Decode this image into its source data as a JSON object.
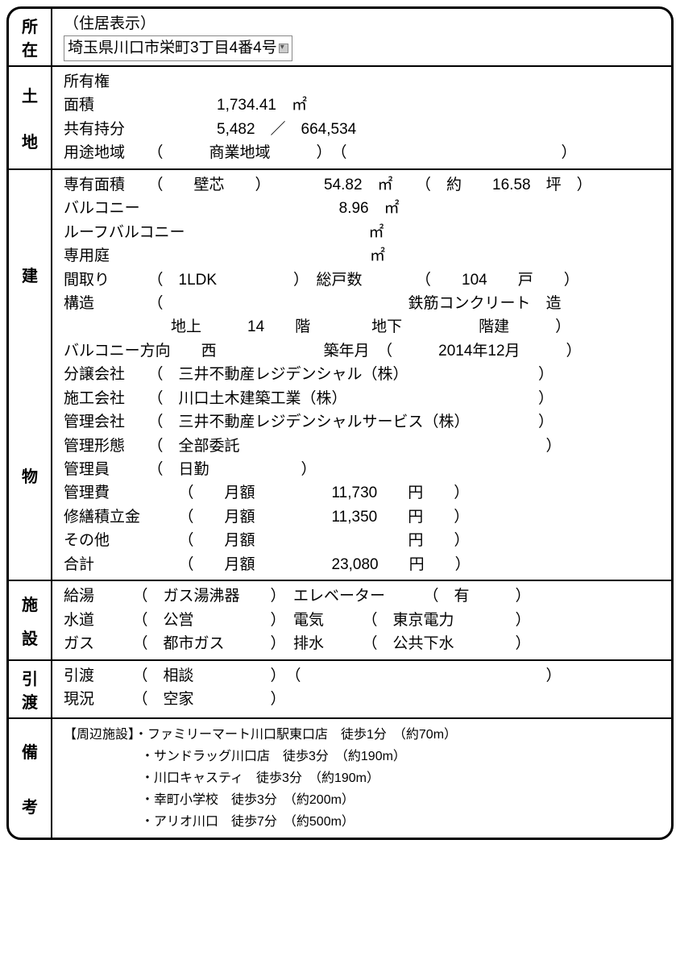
{
  "location": {
    "side1": "所",
    "side2": "在",
    "header": "（住居表示）",
    "address": "埼玉県川口市栄町3丁目4番4号"
  },
  "land": {
    "side1": "土",
    "side2": "地",
    "line1": "所有権",
    "line2": "面積　　　　　　　　1,734.41　㎡",
    "line3": "共有持分　　　　　　5,482　／　664,534",
    "line4": "用途地域　　（　　　商業地域　　　）　（　　　　　　　　　　　　　　）"
  },
  "building": {
    "side1": "建",
    "side2": "物",
    "l01": "専有面積　　（　　壁芯　　）　　　　54.82　㎡　　（　約　　16.58　坪　）",
    "l02": "バルコニー　　　　　　　　　　　　　8.96　㎡",
    "l03": "ルーフバルコニー　　　　　　　　　　　　㎡",
    "l04": "専用庭　　　　　　　　　　　　　　　　　㎡",
    "l05": "間取り　　　（　1LDK　　　　　）　総戸数　　　　（　　104　　戸　　）",
    "l06": "構造　　　　（　　　　　　　　　　　　　　　　鉄筋コンクリート　造",
    "l07": "　　　　　　　地上　　　14　　階　　　　地下　　　　　階建　　　）",
    "l08": "バルコニー方向　　西　　　　　　　築年月　（　　　2014年12月　　　）",
    "l09": "分譲会社　　（　三井不動産レジデンシャル（株）　　　　　　　　　）",
    "l10": "施工会社　　（　川口土木建築工業（株）　　　　　　　　　　　　　）",
    "l11": "管理会社　　（　三井不動産レジデンシャルサービス（株）　　　　　）",
    "l12": "管理形態　　（　全部委託　　　　　　　　　　　　　　　　　　　　）",
    "l13": "管理員　　　（　日勤　　　　　　）",
    "l14": "管理費　　　　　（　　月額　　　　　11,730　　円　　）",
    "l15": "修繕積立金　　　（　　月額　　　　　11,350　　円　　）",
    "l16": "その他　　　　　（　　月額　　　　　　　　　　円　　）",
    "l17": "合計　　　　　　（　　月額　　　　　23,080　　円　　）"
  },
  "facility": {
    "side1": "施",
    "side2": "設",
    "l1": "給湯　　　（　ガス湯沸器　　）　エレベーター　　　（　有　　　）",
    "l2": "水道　　　（　公営　　　　　）　電気　　　（　東京電力　　　　）",
    "l3": "ガス　　　（　都市ガス　　　）　排水　　　（　公共下水　　　　）"
  },
  "handover": {
    "side1": "引",
    "side2": "渡",
    "l1": "引渡　　　（　相談　　　　　）　（　　　　　　　　　　　　　　　　）",
    "l2": "現況　　　（　空家　　　　　）"
  },
  "remarks": {
    "side1": "備",
    "side2": "考",
    "l1": "【周辺施設】・ファミリーマート川口駅東口店　徒歩1分　（約70m）",
    "l2": "　　　　　　・サンドラッグ川口店　徒歩3分　（約190m）",
    "l3": "　　　　　　・川口キャスティ　徒歩3分　（約190m）",
    "l4": "　　　　　　・幸町小学校　徒歩3分　（約200m）",
    "l5": "　　　　　　・アリオ川口　徒歩7分　（約500m）"
  }
}
